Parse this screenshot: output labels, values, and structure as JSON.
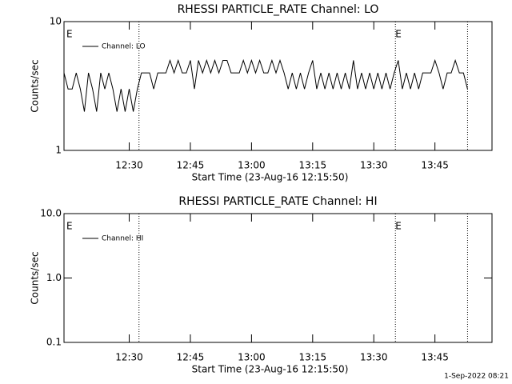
{
  "chart_data": [
    {
      "type": "line",
      "title": "RHESSI PARTICLE_RATE Channel: LO",
      "xlabel": "Start Time (23-Aug-16 12:15:50)",
      "ylabel": "Counts/sec",
      "log_y": true,
      "ylim": [
        1,
        10
      ],
      "yticks": [
        1,
        10
      ],
      "xlim": [
        734,
        839
      ],
      "xticks": [
        {
          "value": 750,
          "label": "12:30"
        },
        {
          "value": 765,
          "label": "12:45"
        },
        {
          "value": 780,
          "label": "13:00"
        },
        {
          "value": 795,
          "label": "13:15"
        },
        {
          "value": 810,
          "label": "13:30"
        },
        {
          "value": 825,
          "label": "13:45"
        }
      ],
      "vlines": [
        752.4,
        815.3,
        833
      ],
      "annotations": [
        {
          "x": 734.6,
          "text": "E"
        },
        {
          "x": 815.3,
          "text": "E"
        }
      ],
      "x": [
        734,
        735,
        736,
        737,
        738,
        739,
        740,
        741,
        742,
        743,
        744,
        745,
        746,
        747,
        748,
        749,
        750,
        751,
        752,
        753,
        754,
        755,
        756,
        757,
        758,
        759,
        760,
        761,
        762,
        763,
        764,
        765,
        766,
        767,
        768,
        769,
        770,
        771,
        772,
        773,
        774,
        775,
        776,
        777,
        778,
        779,
        780,
        781,
        782,
        783,
        784,
        785,
        786,
        787,
        788,
        789,
        790,
        791,
        792,
        793,
        794,
        795,
        796,
        797,
        798,
        799,
        800,
        801,
        802,
        803,
        804,
        805,
        806,
        807,
        808,
        809,
        810,
        811,
        812,
        813,
        814,
        815,
        816,
        817,
        818,
        819,
        820,
        821,
        822,
        823,
        824,
        825,
        826,
        827,
        828,
        829,
        830,
        831,
        832,
        833
      ],
      "series": [
        {
          "name": "Channel: LO",
          "color": "#000000",
          "values": [
            4,
            3,
            3,
            4,
            3,
            2,
            4,
            3,
            2,
            4,
            3,
            4,
            3,
            2,
            3,
            2,
            3,
            2,
            3,
            4,
            4,
            4,
            3,
            4,
            4,
            4,
            5,
            4,
            5,
            4,
            4,
            5,
            3,
            5,
            4,
            5,
            4,
            5,
            4,
            5,
            5,
            4,
            4,
            4,
            5,
            4,
            5,
            4,
            5,
            4,
            4,
            5,
            4,
            5,
            4,
            3,
            4,
            3,
            4,
            3,
            4,
            5,
            3,
            4,
            3,
            4,
            3,
            4,
            3,
            4,
            3,
            5,
            3,
            4,
            3,
            4,
            3,
            4,
            3,
            4,
            3,
            4,
            5,
            3,
            4,
            3,
            4,
            3,
            4,
            4,
            4,
            5,
            4,
            3,
            4,
            4,
            5,
            4,
            4,
            3
          ]
        }
      ]
    },
    {
      "type": "line",
      "title": "RHESSI PARTICLE_RATE Channel: HI",
      "xlabel": "Start Time (23-Aug-16 12:15:50)",
      "ylabel": "Counts/sec",
      "log_y": true,
      "ylim": [
        0.1,
        10
      ],
      "yticks": [
        0.1,
        {
          "value": 1,
          "label": "1.0"
        },
        {
          "value": 10,
          "label": "10.0"
        }
      ],
      "xlim": [
        734,
        839
      ],
      "xticks": [
        {
          "value": 750,
          "label": "12:30"
        },
        {
          "value": 765,
          "label": "12:45"
        },
        {
          "value": 780,
          "label": "13:00"
        },
        {
          "value": 795,
          "label": "13:15"
        },
        {
          "value": 810,
          "label": "13:30"
        },
        {
          "value": 825,
          "label": "13:45"
        }
      ],
      "vlines": [
        752.4,
        815.3,
        833
      ],
      "annotations": [
        {
          "x": 734.6,
          "text": "E"
        },
        {
          "x": 815.3,
          "text": "E"
        }
      ],
      "x": [
        734,
        735,
        736,
        737,
        738,
        739,
        740,
        741,
        742,
        743,
        744,
        745,
        746,
        747,
        748,
        749,
        750,
        751,
        752,
        753,
        754,
        755,
        756,
        757,
        758,
        759,
        760,
        761,
        762,
        763,
        764,
        765,
        766,
        767,
        768,
        769,
        770,
        771,
        772,
        773,
        774,
        775,
        776,
        777,
        778,
        779,
        780,
        781,
        782,
        783,
        784,
        785,
        786,
        787,
        788,
        789,
        790,
        791,
        792,
        793,
        794,
        795,
        796,
        797,
        798,
        799,
        800,
        801,
        802,
        803,
        804,
        805,
        806,
        807,
        808,
        809,
        810,
        811,
        812,
        813,
        814,
        815,
        816,
        817,
        818,
        819,
        820,
        821,
        822,
        823,
        824,
        825,
        826,
        827,
        828,
        829,
        830,
        831,
        832,
        833
      ],
      "series": [
        {
          "name": "Channel: HI",
          "color": "#000000",
          "values": [
            null,
            null,
            null,
            null,
            null,
            null,
            null,
            null,
            null,
            null,
            null,
            null,
            null,
            null,
            null,
            null,
            null,
            null,
            null,
            null,
            null,
            null,
            null,
            null,
            null,
            null,
            null,
            null,
            null,
            null,
            null,
            null,
            null,
            null,
            null,
            null,
            null,
            null,
            null,
            null,
            null,
            null,
            null,
            null,
            null,
            null,
            null,
            null,
            null,
            null,
            null,
            null,
            null,
            null,
            null,
            null,
            null,
            null,
            null,
            null,
            null,
            null,
            null,
            null,
            null,
            null,
            null,
            null,
            null,
            null,
            null,
            null,
            null,
            null,
            null,
            null,
            null,
            null,
            null,
            null,
            null,
            null,
            null,
            null,
            null,
            null,
            null,
            null,
            null,
            null,
            null,
            null,
            null,
            null,
            null,
            null,
            null,
            null,
            null,
            null
          ]
        }
      ]
    }
  ],
  "footer": "1-Sep-2022 08:21"
}
